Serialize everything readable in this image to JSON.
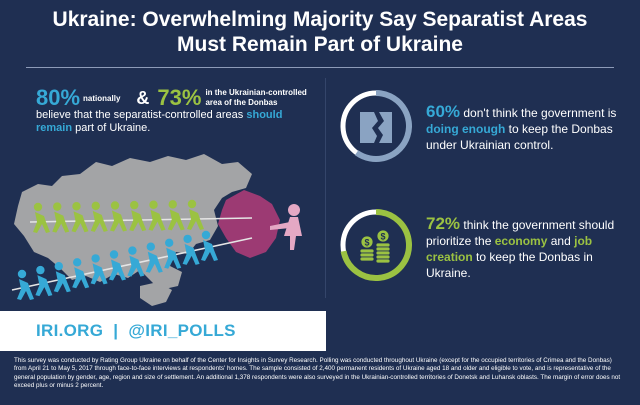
{
  "title": {
    "line1": "Ukraine: Overwhelming Majority Say Separatist Areas",
    "line2": "Must Remain Part of Ukraine"
  },
  "chart_data": {
    "type": "infographic",
    "title": "Ukraine: Overwhelming Majority Say Separatist Areas Must Remain Part of Ukraine",
    "stats": [
      {
        "label": "nationally",
        "value": 80,
        "display": "80%"
      },
      {
        "label": "in the Ukrainian-controlled area of the Donbas",
        "value": 73,
        "display": "73%"
      },
      {
        "label": "don't think the government is doing enough",
        "value": 60,
        "display": "60%"
      },
      {
        "label": "think the government should prioritize the economy and job creation",
        "value": 72,
        "display": "72%"
      }
    ]
  },
  "headline_stats": {
    "national_pct": "80%",
    "national_label": "nationally",
    "amp": "&",
    "donbas_pct": "73%",
    "donbas_label": "in the Ukrainian-controlled area of the Donbas",
    "believe_pre": "believe that the separatist-controlled areas",
    "believe_hl": "should remain",
    "believe_post": "part of Ukraine."
  },
  "stat_government": {
    "pct": "60%",
    "text_pre": "don't think the government is",
    "text_hl": "doing enough",
    "text_post": "to keep the Donbas under Ukrainian control.",
    "value": 60
  },
  "stat_economy": {
    "pct": "72%",
    "text_pre": "think the government should prioritize the",
    "kw_economy": "economy",
    "and_word": "and",
    "kw_jobs": "job creation",
    "text_post": "to keep the Donbas in Ukraine.",
    "value": 72
  },
  "footer": {
    "site": "IRI.ORG",
    "sep": "|",
    "handle": "@IRI_POLLS"
  },
  "methodology": "This survey was conducted by Rating Group Ukraine on behalf of the Center for Insights in Survey Research. Polling was conducted throughout Ukraine (except for the occupied territories of Crimea and the Donbas) from April 21 to May 5, 2017 through face-to-face interviews at respondents' homes. The sample consisted of 2,400 permanent residents of Ukraine aged 18 and older and eligible to vote, and is representative of the general population by gender, age, region and size of settlement. An additional 1,378 respondents were also surveyed in the Ukrainian-controlled territories of Donetsk and Luhansk oblasts. The margin of error does not exceed plus or minus 2 percent.",
  "colors": {
    "background": "#1f2f52",
    "blue": "#36a9d6",
    "green": "#9bc242",
    "map_grey": "#a3a4a6",
    "donbas": "#9c3a73",
    "ring_track": "#ffffff"
  }
}
